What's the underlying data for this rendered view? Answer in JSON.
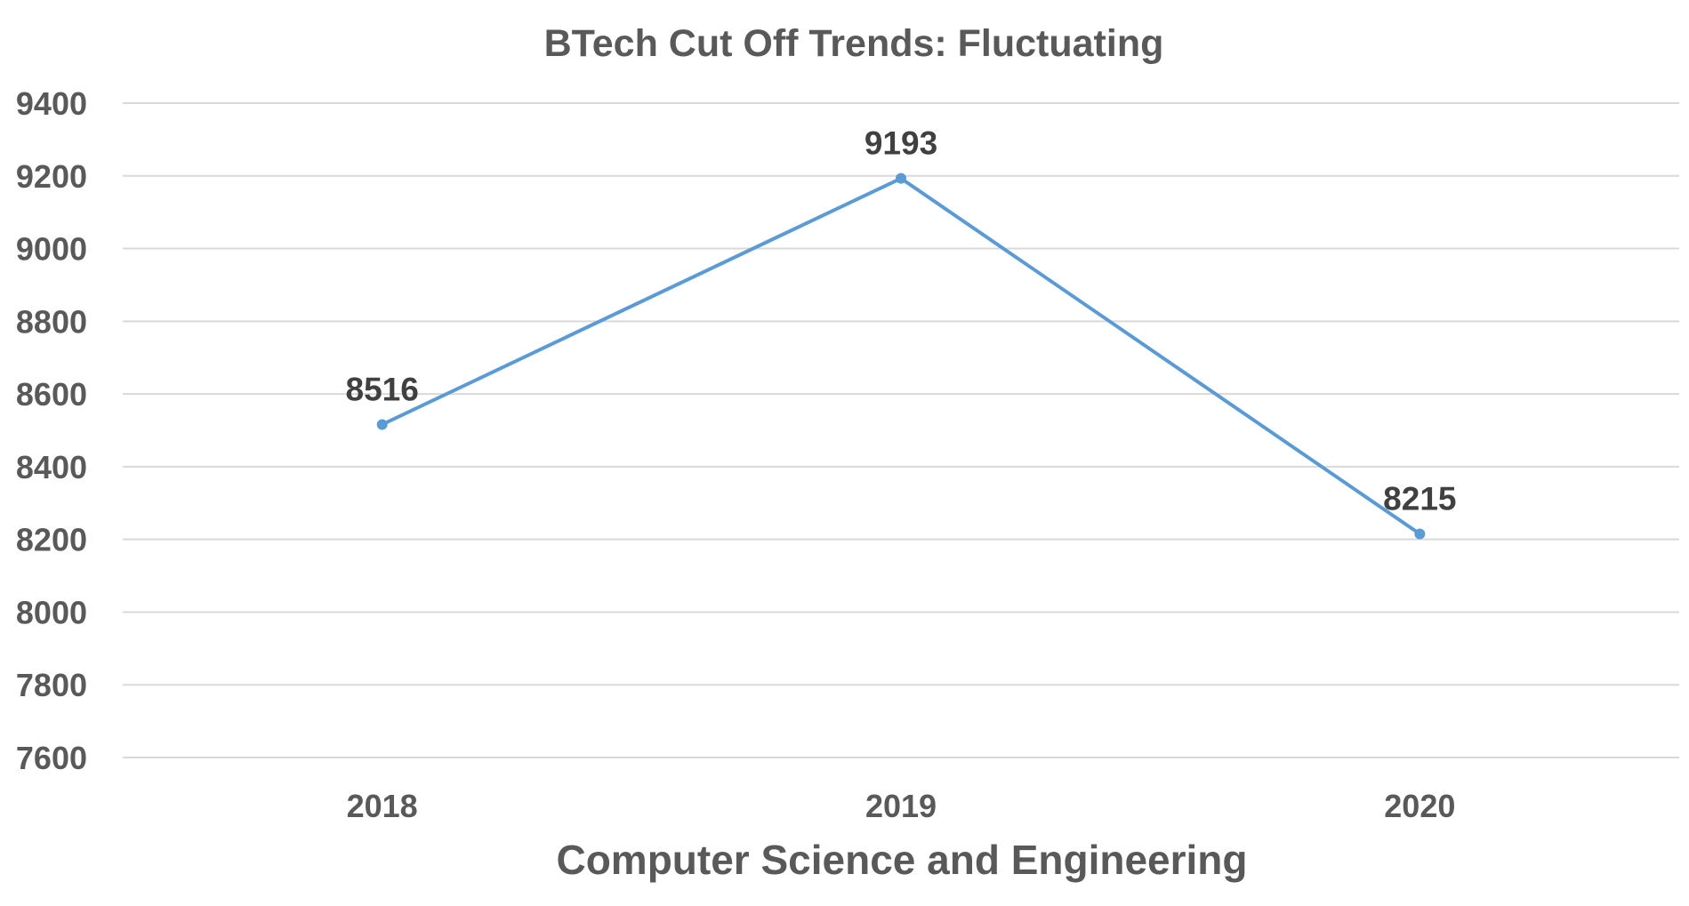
{
  "chart_data": {
    "type": "line",
    "title": "BTech Cut Off Trends: Fluctuating",
    "xlabel": "Computer Science and Engineering",
    "ylabel": "",
    "categories": [
      "2018",
      "2019",
      "2020"
    ],
    "series": [
      {
        "values": [
          8516,
          9193,
          8215
        ],
        "color": "#5b9bd5"
      }
    ],
    "ylim": [
      7600,
      9400
    ],
    "yticks": [
      7600,
      7800,
      8000,
      8200,
      8400,
      8600,
      8800,
      9000,
      9200,
      9400
    ],
    "grid": true,
    "legend": "none",
    "data_labels": true
  }
}
